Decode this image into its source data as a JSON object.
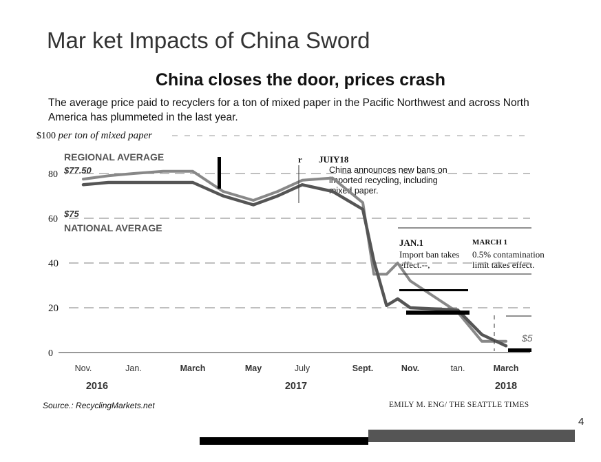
{
  "slide": {
    "title": "Mar ket Impacts of China Sword",
    "page_number": "4"
  },
  "chart_data": {
    "type": "line",
    "title": "China closes the door, prices crash",
    "subtitle": "The average price paid to recyclers for a ton of mixed paper in the Pacific Northwest and across North America has plummeted in the last year.",
    "ylabel": "per ton of mixed paper",
    "y_top_label": "$100",
    "ylim": [
      0,
      100
    ],
    "yticks": [
      0,
      20,
      40,
      60,
      80
    ],
    "grid": true,
    "x_ticks": [
      "Nov.",
      "Jan.",
      "March",
      "May",
      "July",
      "Sept.",
      "Nov.",
      "tan.",
      "March"
    ],
    "x_years": [
      "2016",
      "2017",
      "2018"
    ],
    "legend": "top-left",
    "series": [
      {
        "name": "REGIONAL AVERAGE",
        "label_value": "$77.50",
        "color": "#888888",
        "x": [
          "2016-11",
          "2016-12",
          "2017-01",
          "2017-02",
          "2017-03",
          "2017-04",
          "2017-05",
          "2017-06",
          "2017-07",
          "2017-08",
          "2017-09",
          "2017-09-15",
          "2017-10",
          "2017-10-15",
          "2017-11",
          "2018-01",
          "2018-02",
          "2018-03",
          "2018-03-20"
        ],
        "values": [
          77.5,
          79,
          80,
          81,
          81,
          72,
          68,
          72,
          77,
          78,
          67,
          35,
          35,
          40,
          32,
          18,
          5,
          5,
          5
        ]
      },
      {
        "name": "NATIONAL AVERAGE",
        "label_value": "$75",
        "color": "#555555",
        "x": [
          "2016-11",
          "2016-12",
          "2017-01",
          "2017-02",
          "2017-03",
          "2017-04",
          "2017-05",
          "2017-06",
          "2017-07",
          "2017-08",
          "2017-09",
          "2017-09-15",
          "2017-10",
          "2017-10-15",
          "2017-11",
          "2018-01",
          "2018-02",
          "2018-03",
          "2018-03-20"
        ],
        "values": [
          75,
          76,
          76,
          76,
          76,
          70,
          66,
          70,
          75,
          72,
          64,
          41,
          21,
          24,
          20,
          19,
          8,
          3,
          3
        ]
      }
    ],
    "end_label": "$5",
    "annotations": [
      {
        "date": "JUIY18",
        "marker": "r",
        "text": "China announces new bans on imported recycling, including mixed paper."
      },
      {
        "date": "JAN.1",
        "text": "Import ban takes effect.--,"
      },
      {
        "date": "MARCH 1",
        "text": "0.5% contamination limit takes effect."
      }
    ],
    "source": "Source.: RecyclingMarkets.net",
    "credit": "EMILY M. ENG/ THE SEATTLE TIMES"
  }
}
